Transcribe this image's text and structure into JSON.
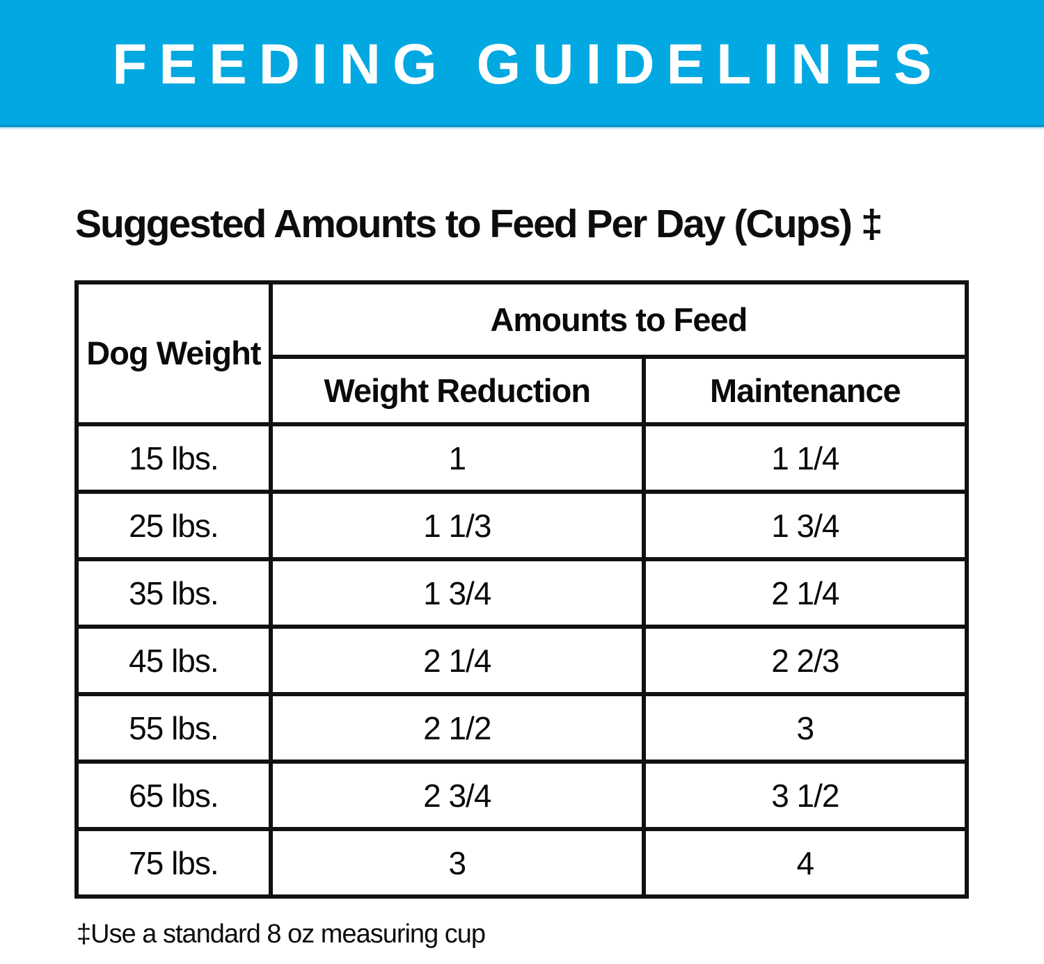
{
  "banner": {
    "title": "FEEDING GUIDELINES",
    "bg_color": "#02a8e1",
    "text_color": "#ffffff"
  },
  "heading": "Suggested Amounts to Feed Per Day (Cups) ‡",
  "table": {
    "corner_header": "Dog Weight",
    "group_header": "Amounts to Feed",
    "sub_headers": {
      "reduction": "Weight Reduction",
      "maintenance": "Maintenance"
    },
    "rows": [
      {
        "weight": "15 lbs.",
        "reduction": "1",
        "maintenance": "1 1/4"
      },
      {
        "weight": "25 lbs.",
        "reduction": "1 1/3",
        "maintenance": "1 3/4"
      },
      {
        "weight": "35 lbs.",
        "reduction": "1 3/4",
        "maintenance": "2 1/4"
      },
      {
        "weight": "45 lbs.",
        "reduction": "2 1/4",
        "maintenance": "2 2/3"
      },
      {
        "weight": "55 lbs.",
        "reduction": "2 1/2",
        "maintenance": "3"
      },
      {
        "weight": "65 lbs.",
        "reduction": "2 3/4",
        "maintenance": "3 1/2"
      },
      {
        "weight": "75 lbs.",
        "reduction": "3",
        "maintenance": "4"
      }
    ]
  },
  "footnote": "‡Use a standard 8 oz measuring cup",
  "colors": {
    "border": "#111111",
    "text": "#0d0d0d"
  }
}
